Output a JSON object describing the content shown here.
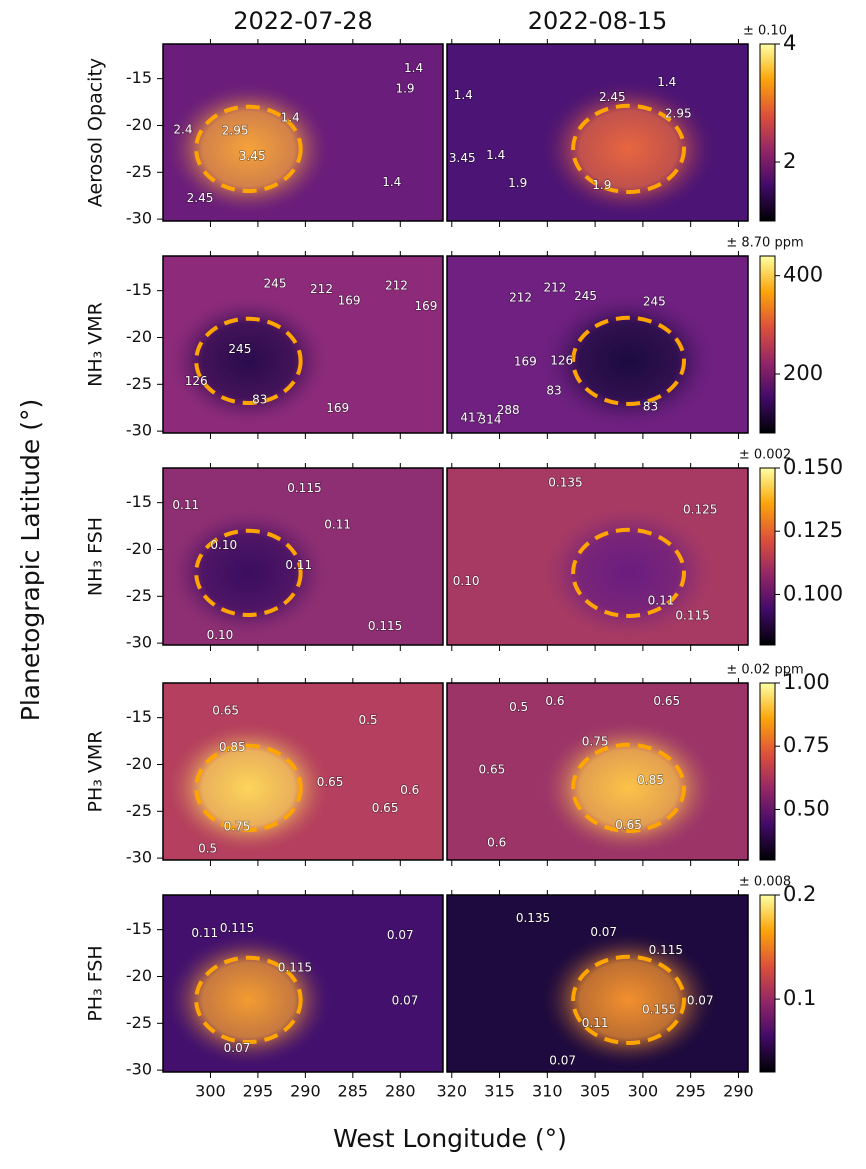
{
  "chart_data": {
    "type": "map-grid",
    "ylabel": "Planetograpic Latitude (°)",
    "xlabel": "West Longitude (°)",
    "ylim": [
      -30.2,
      -11.3
    ],
    "yticks": [
      -15,
      -20,
      -25,
      -30
    ],
    "colormap": [
      "#000004",
      "#420a68",
      "#932667",
      "#dd513a",
      "#fca50a",
      "#fcffa4"
    ],
    "vortex_color": "#ffa500",
    "columns": [
      {
        "title": "2022-07-28",
        "xlim": [
          305,
          275.5
        ],
        "xticks": [
          300,
          295,
          290,
          285,
          280
        ],
        "vortex": {
          "lon": 296,
          "lat": -22.5,
          "rx": 5.5,
          "ry": 4.5
        }
      },
      {
        "title": "2022-08-15",
        "xlim": [
          320.5,
          289
        ],
        "xticks": [
          320,
          315,
          310,
          305,
          300,
          295,
          290
        ],
        "vortex": {
          "lon": 301.5,
          "lat": -22.5,
          "rx": 5.8,
          "ry": 4.6
        }
      }
    ],
    "rows": [
      {
        "label": "Aerosol Opacity",
        "uncertainty": "± 0.10",
        "clim": [
          1,
          4
        ],
        "cticks": [
          2,
          4
        ],
        "panels": [
          {
            "background": "#6a1d7a",
            "vortex_fill": "#f6a33a",
            "contours": [
              {
                "value": 1.4,
                "lon": 291.6,
                "lat": -19.2
              },
              {
                "value": 1.4,
                "lon": 278.6,
                "lat": -13.9
              },
              {
                "value": 1.9,
                "lon": 279.5,
                "lat": -16.1
              },
              {
                "value": 2.4,
                "lon": 302.9,
                "lat": -20.5
              },
              {
                "value": 2.95,
                "lon": 297.4,
                "lat": -20.6
              },
              {
                "value": 3.45,
                "lon": 295.6,
                "lat": -23.3
              },
              {
                "value": 2.45,
                "lon": 301.1,
                "lat": -27.8
              },
              {
                "value": 1.4,
                "lon": 280.9,
                "lat": -26.1
              }
            ]
          },
          {
            "background": "#4c1474",
            "vortex_fill": "#e8663f",
            "contours": [
              {
                "value": 1.4,
                "lon": 318.8,
                "lat": -16.8
              },
              {
                "value": 1.4,
                "lon": 297.5,
                "lat": -15.4
              },
              {
                "value": 2.45,
                "lon": 303.2,
                "lat": -17.0
              },
              {
                "value": 2.95,
                "lon": 296.3,
                "lat": -18.8
              },
              {
                "value": 3.45,
                "lon": 318.9,
                "lat": -23.5
              },
              {
                "value": 1.4,
                "lon": 315.4,
                "lat": -23.2
              },
              {
                "value": 1.9,
                "lon": 313.1,
                "lat": -26.2
              },
              {
                "value": 1.9,
                "lon": 304.3,
                "lat": -26.4
              }
            ]
          }
        ]
      },
      {
        "label": "NH₃ VMR",
        "uncertainty": "± 8.70 ppm",
        "clim": [
          80,
          440
        ],
        "cticks": [
          200,
          400
        ],
        "panels": [
          {
            "background": "#8d2b7a",
            "vortex_fill": "#2a0b4d",
            "contours": [
              {
                "value": 245,
                "lon": 293.2,
                "lat": -14.3
              },
              {
                "value": 212,
                "lon": 288.3,
                "lat": -14.9
              },
              {
                "value": 169,
                "lon": 285.4,
                "lat": -16.1
              },
              {
                "value": 212,
                "lon": 280.4,
                "lat": -14.5
              },
              {
                "value": 169,
                "lon": 277.3,
                "lat": -16.7
              },
              {
                "value": 245,
                "lon": 296.9,
                "lat": -21.3
              },
              {
                "value": 126,
                "lon": 301.5,
                "lat": -24.7
              },
              {
                "value": 83,
                "lon": 294.8,
                "lat": -26.7
              },
              {
                "value": 169,
                "lon": 286.6,
                "lat": -27.6
              }
            ]
          },
          {
            "background": "#6f2080",
            "vortex_fill": "#1c0b3f",
            "contours": [
              {
                "value": 212,
                "lon": 312.8,
                "lat": -15.8
              },
              {
                "value": 212,
                "lon": 309.2,
                "lat": -14.7
              },
              {
                "value": 245,
                "lon": 306.0,
                "lat": -15.6
              },
              {
                "value": 245,
                "lon": 298.8,
                "lat": -16.2
              },
              {
                "value": 169,
                "lon": 312.3,
                "lat": -22.6
              },
              {
                "value": 126,
                "lon": 308.5,
                "lat": -22.5
              },
              {
                "value": 83,
                "lon": 309.3,
                "lat": -25.7
              },
              {
                "value": 83,
                "lon": 299.2,
                "lat": -27.4
              },
              {
                "value": 417,
                "lon": 317.9,
                "lat": -28.6
              },
              {
                "value": 314,
                "lon": 316.0,
                "lat": -28.8
              },
              {
                "value": 288,
                "lon": 314.1,
                "lat": -27.8
              }
            ]
          }
        ]
      },
      {
        "label": "NH₃ FSH",
        "uncertainty": "± 0.002",
        "clim": [
          0.08,
          0.15
        ],
        "cticks": [
          {
            "value": 0.15,
            "label": "0.150"
          },
          0.125,
          {
            "value": 0.1,
            "label": "0.100"
          }
        ],
        "panels": [
          {
            "background": "#8f2f73",
            "vortex_fill": "#3a0d60",
            "contours": [
              {
                "value": 0.11,
                "lon": 302.6,
                "lat": -15.3
              },
              {
                "value": 0.115,
                "lon": 290.1,
                "lat": -13.5
              },
              {
                "value": 0.11,
                "lon": 286.6,
                "lat": -17.4
              },
              {
                "value": 0.1,
                "label": "0.10",
                "lon": 298.6,
                "lat": -19.6
              },
              {
                "value": 0.11,
                "lon": 290.7,
                "lat": -21.7
              },
              {
                "value": 0.115,
                "lon": 281.6,
                "lat": -28.2
              },
              {
                "value": 0.1,
                "label": "0.10",
                "lon": 299,
                "lat": -29.2
              }
            ]
          },
          {
            "background": "#a63a63",
            "vortex_fill": "#6a1d80",
            "contours": [
              {
                "value": 0.135,
                "lon": 308.1,
                "lat": -12.9
              },
              {
                "value": 0.125,
                "lon": 294.0,
                "lat": -15.8
              },
              {
                "value": 0.1,
                "label": "0.10",
                "lon": 318.5,
                "lat": -23.4
              },
              {
                "value": 0.11,
                "lon": 298.1,
                "lat": -25.5
              },
              {
                "value": 0.115,
                "lon": 294.8,
                "lat": -27.1
              }
            ]
          }
        ]
      },
      {
        "label": "PH₃ VMR",
        "uncertainty": "± 0.02 ppm",
        "clim": [
          0.3,
          1
        ],
        "cticks": [
          {
            "value": 1,
            "label": "1.00"
          },
          0.75,
          {
            "value": 0.5,
            "label": "0.50"
          }
        ],
        "panels": [
          {
            "background": "#b43f5e",
            "vortex_fill": "#fcd55a",
            "contours": [
              {
                "value": 0.65,
                "lon": 298.4,
                "lat": -14.3
              },
              {
                "value": 0.5,
                "lon": 283.4,
                "lat": -15.3
              },
              {
                "value": 0.85,
                "lon": 297.7,
                "lat": -18.2
              },
              {
                "value": 0.65,
                "lon": 287.4,
                "lat": -21.9
              },
              {
                "value": 0.6,
                "lon": 279,
                "lat": -22.8
              },
              {
                "value": 0.75,
                "lon": 297.2,
                "lat": -26.7
              },
              {
                "value": 0.65,
                "lon": 281.6,
                "lat": -24.7
              },
              {
                "value": 0.5,
                "lon": 300.3,
                "lat": -29.0
              }
            ]
          },
          {
            "background": "#9c3468",
            "vortex_fill": "#fbc348",
            "contours": [
              {
                "value": 0.5,
                "lon": 313.0,
                "lat": -13.9
              },
              {
                "value": 0.6,
                "lon": 309.2,
                "lat": -13.3
              },
              {
                "value": 0.65,
                "lon": 297.5,
                "lat": -13.3
              },
              {
                "value": 0.75,
                "lon": 305,
                "lat": -17.6
              },
              {
                "value": 0.85,
                "lon": 299.2,
                "lat": -21.7
              },
              {
                "value": 0.65,
                "lon": 315.8,
                "lat": -20.6
              },
              {
                "value": 0.6,
                "lon": 315.3,
                "lat": -28.4
              },
              {
                "value": 0.65,
                "lon": 301.5,
                "lat": -26.5
              }
            ]
          }
        ]
      },
      {
        "label": "PH₃ FSH",
        "uncertainty": "± 0.008",
        "clim": [
          0.03,
          0.2
        ],
        "cticks": [
          0.2,
          0.1
        ],
        "panels": [
          {
            "background": "#43116d",
            "vortex_fill": "#f39c31",
            "contours": [
              {
                "value": 0.11,
                "lon": 300.6,
                "lat": -15.4
              },
              {
                "value": 0.115,
                "lon": 297.2,
                "lat": -14.9
              },
              {
                "value": 0.07,
                "lon": 280,
                "lat": -15.6
              },
              {
                "value": 0.115,
                "lon": 291.1,
                "lat": -19.1
              },
              {
                "value": 0.07,
                "lon": 279.5,
                "lat": -22.6
              },
              {
                "value": 0.07,
                "lon": 297.2,
                "lat": -27.7
              }
            ]
          },
          {
            "background": "#1e0a3e",
            "vortex_fill": "#f2902e",
            "contours": [
              {
                "value": 0.135,
                "lon": 311.5,
                "lat": -13.8
              },
              {
                "value": 0.07,
                "lon": 304.1,
                "lat": -15.3
              },
              {
                "value": 0.115,
                "lon": 297.6,
                "lat": -17.2
              },
              {
                "value": 0.155,
                "lon": 298.3,
                "lat": -23.6
              },
              {
                "value": 0.11,
                "lon": 305,
                "lat": -25.0
              },
              {
                "value": 0.07,
                "lon": 294,
                "lat": -22.6
              },
              {
                "value": 0.07,
                "lon": 308.4,
                "lat": -29.0
              }
            ]
          }
        ]
      }
    ]
  }
}
